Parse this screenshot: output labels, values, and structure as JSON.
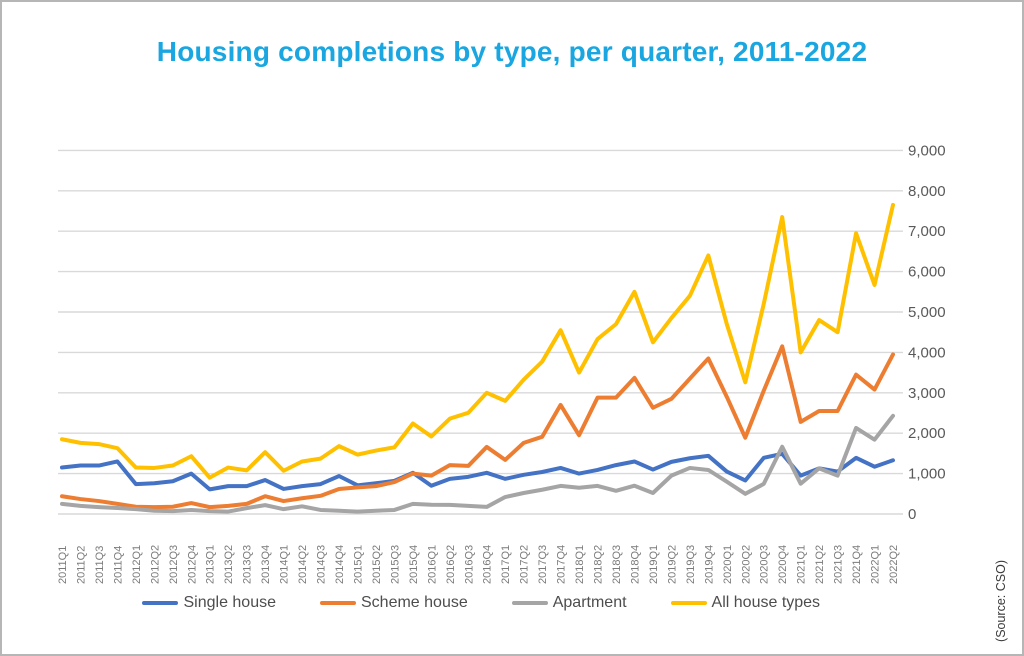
{
  "title": {
    "text": "Housing completions by type, per quarter, 2011-2022",
    "color": "#1aa6e0"
  },
  "source_note": "(Source: CSO)",
  "chart_data": {
    "type": "line",
    "title": "Housing completions by type, per quarter, 2011-2022",
    "xlabel": "",
    "ylabel": "",
    "ylim": [
      0,
      9000
    ],
    "grid": "horizontal",
    "legend_position": "bottom",
    "y_tick_labels": [
      "0",
      "1,000",
      "2,000",
      "3,000",
      "4,000",
      "5,000",
      "6,000",
      "7,000",
      "8,000",
      "9,000"
    ],
    "categories": [
      "2011Q1",
      "2011Q2",
      "2011Q3",
      "2011Q4",
      "2012Q1",
      "2012Q2",
      "2012Q3",
      "2012Q4",
      "2013Q1",
      "2013Q2",
      "2013Q3",
      "2013Q4",
      "2014Q1",
      "2014Q2",
      "2014Q3",
      "2014Q4",
      "2015Q1",
      "2015Q2",
      "2015Q3",
      "2015Q4",
      "2016Q1",
      "2016Q2",
      "2016Q3",
      "2016Q4",
      "2017Q1",
      "2017Q2",
      "2017Q3",
      "2017Q4",
      "2018Q1",
      "2018Q2",
      "2018Q3",
      "2018Q4",
      "2019Q1",
      "2019Q2",
      "2019Q3",
      "2019Q4",
      "2020Q1",
      "2020Q2",
      "2020Q3",
      "2020Q4",
      "2021Q1",
      "2021Q2",
      "2021Q3",
      "2021Q4",
      "2022Q1",
      "2022Q2"
    ],
    "series": [
      {
        "name": "Single house",
        "color": "#4472C4",
        "values": [
          1150,
          1200,
          1200,
          1300,
          740,
          760,
          810,
          1000,
          610,
          690,
          690,
          840,
          620,
          690,
          740,
          940,
          710,
          760,
          820,
          1020,
          700,
          870,
          920,
          1020,
          870,
          970,
          1040,
          1140,
          1000,
          1090,
          1210,
          1300,
          1100,
          1290,
          1380,
          1440,
          1050,
          830,
          1390,
          1490,
          950,
          1130,
          1050,
          1390,
          1170,
          1330
        ]
      },
      {
        "name": "Scheme house",
        "color": "#ED7D31",
        "values": [
          440,
          370,
          320,
          250,
          180,
          170,
          180,
          270,
          170,
          200,
          250,
          440,
          320,
          390,
          450,
          620,
          660,
          690,
          790,
          1000,
          950,
          1210,
          1190,
          1660,
          1340,
          1760,
          1910,
          2700,
          1950,
          2880,
          2880,
          3370,
          2630,
          2850,
          3350,
          3850,
          2900,
          1890,
          3050,
          4150,
          2280,
          2550,
          2550,
          3450,
          3080,
          3950
        ]
      },
      {
        "name": "Apartment",
        "color": "#A5A5A5",
        "values": [
          250,
          200,
          170,
          150,
          120,
          80,
          70,
          100,
          70,
          60,
          145,
          220,
          120,
          190,
          100,
          80,
          60,
          80,
          100,
          250,
          230,
          225,
          200,
          175,
          420,
          520,
          600,
          695,
          650,
          695,
          575,
          700,
          520,
          950,
          1140,
          1090,
          800,
          500,
          745,
          1665,
          750,
          1130,
          950,
          2130,
          1840,
          2430
        ]
      },
      {
        "name": "All house types",
        "color": "#FFC000",
        "values": [
          1850,
          1760,
          1730,
          1630,
          1150,
          1140,
          1200,
          1430,
          900,
          1150,
          1080,
          1530,
          1070,
          1300,
          1370,
          1680,
          1470,
          1570,
          1650,
          2240,
          1920,
          2360,
          2505,
          3000,
          2800,
          3325,
          3770,
          4550,
          3500,
          4330,
          4700,
          5500,
          4250,
          4850,
          5400,
          6400,
          4700,
          3260,
          5200,
          7350,
          4000,
          4800,
          4500,
          6950,
          5670,
          7650
        ]
      }
    ]
  }
}
